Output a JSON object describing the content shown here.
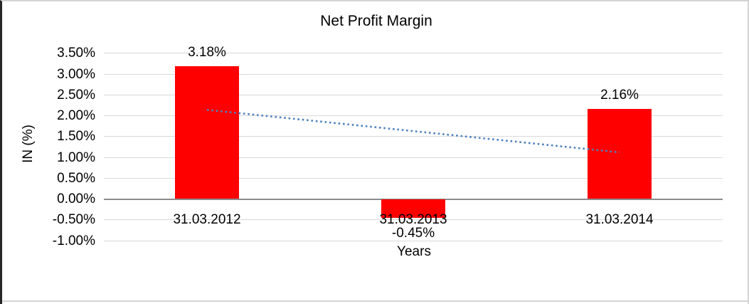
{
  "chart_data": {
    "type": "bar",
    "title": "Net Profit Margin",
    "xlabel": "Years",
    "ylabel": "IN (%)",
    "categories": [
      "31.03.2012",
      "31.03.2013",
      "31.03.2014"
    ],
    "values": [
      3.18,
      -0.45,
      2.16
    ],
    "data_labels": [
      "3.18%",
      "-0.45%",
      "2.16%"
    ],
    "ylim": [
      -1.0,
      3.5
    ],
    "ytick_step": 0.5,
    "yticks": [
      {
        "v": 3.5,
        "label": "3.50%"
      },
      {
        "v": 3.0,
        "label": "3.00%"
      },
      {
        "v": 2.5,
        "label": "2.50%"
      },
      {
        "v": 2.0,
        "label": "2.00%"
      },
      {
        "v": 1.5,
        "label": "1.50%"
      },
      {
        "v": 1.0,
        "label": "1.00%"
      },
      {
        "v": 0.5,
        "label": "0.50%"
      },
      {
        "v": 0.0,
        "label": "0.00%"
      },
      {
        "v": -0.5,
        "label": "-0.50%"
      },
      {
        "v": -1.0,
        "label": "-1.00%"
      }
    ],
    "grid": true,
    "legend": "none",
    "trendline": {
      "type": "linear",
      "style": "dotted",
      "v_start": 2.14,
      "v_end": 1.12
    },
    "colors": {
      "bar": "#FF0000",
      "trendline": "#4F81BD",
      "gridline": "#D9D9D9",
      "axis_line": "#8C8C8C",
      "text": "#000000",
      "background": "#FFFFFF",
      "frame_light": "#D4D4D4",
      "frame_dark": "#262626"
    }
  }
}
